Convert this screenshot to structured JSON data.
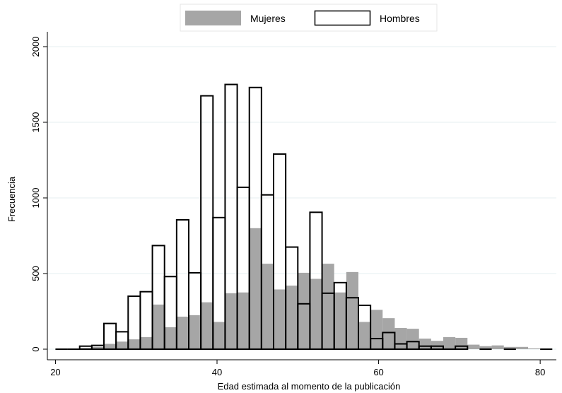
{
  "chart_data": {
    "type": "bar",
    "xlabel": "Edad estimada al momento de la publicación",
    "ylabel": "Frecuencia",
    "xlim": [
      19,
      82
    ],
    "ylim": [
      0,
      2000
    ],
    "xticks": [
      20,
      40,
      60,
      80
    ],
    "yticks": [
      0,
      500,
      1000,
      1500,
      2000
    ],
    "bin_width": 1.5,
    "legend_position": "top",
    "grid": true,
    "series": [
      {
        "name": "Mujeres",
        "style": "filled",
        "color": "#a6a6a6",
        "bins": [
          {
            "x0": 21.5,
            "value": 3
          },
          {
            "x0": 23.0,
            "value": 8
          },
          {
            "x0": 24.5,
            "value": 15
          },
          {
            "x0": 26.0,
            "value": 35
          },
          {
            "x0": 27.5,
            "value": 50
          },
          {
            "x0": 29.0,
            "value": 65
          },
          {
            "x0": 30.5,
            "value": 80
          },
          {
            "x0": 32.0,
            "value": 295
          },
          {
            "x0": 33.5,
            "value": 145
          },
          {
            "x0": 35.0,
            "value": 215
          },
          {
            "x0": 36.5,
            "value": 225
          },
          {
            "x0": 38.0,
            "value": 310
          },
          {
            "x0": 39.5,
            "value": 180
          },
          {
            "x0": 41.0,
            "value": 370
          },
          {
            "x0": 42.5,
            "value": 375
          },
          {
            "x0": 44.0,
            "value": 800
          },
          {
            "x0": 45.5,
            "value": 565
          },
          {
            "x0": 47.0,
            "value": 395
          },
          {
            "x0": 48.5,
            "value": 420
          },
          {
            "x0": 50.0,
            "value": 505
          },
          {
            "x0": 51.5,
            "value": 465
          },
          {
            "x0": 53.0,
            "value": 565
          },
          {
            "x0": 54.5,
            "value": 375
          },
          {
            "x0": 56.0,
            "value": 510
          },
          {
            "x0": 57.5,
            "value": 180
          },
          {
            "x0": 59.0,
            "value": 260
          },
          {
            "x0": 60.5,
            "value": 205
          },
          {
            "x0": 62.0,
            "value": 140
          },
          {
            "x0": 63.5,
            "value": 135
          },
          {
            "x0": 65.0,
            "value": 70
          },
          {
            "x0": 66.5,
            "value": 55
          },
          {
            "x0": 68.0,
            "value": 80
          },
          {
            "x0": 69.5,
            "value": 75
          },
          {
            "x0": 71.0,
            "value": 30
          },
          {
            "x0": 72.5,
            "value": 20
          },
          {
            "x0": 74.0,
            "value": 25
          },
          {
            "x0": 75.5,
            "value": 15
          },
          {
            "x0": 77.0,
            "value": 15
          },
          {
            "x0": 78.5,
            "value": 5
          }
        ]
      },
      {
        "name": "Hombres",
        "style": "outline",
        "color": "#000000",
        "bins": [
          {
            "x0": 20.0,
            "value": 0
          },
          {
            "x0": 21.5,
            "value": 0
          },
          {
            "x0": 23.0,
            "value": 20
          },
          {
            "x0": 24.5,
            "value": 25
          },
          {
            "x0": 26.0,
            "value": 170
          },
          {
            "x0": 27.5,
            "value": 115
          },
          {
            "x0": 29.0,
            "value": 350
          },
          {
            "x0": 30.5,
            "value": 380
          },
          {
            "x0": 32.0,
            "value": 685
          },
          {
            "x0": 33.5,
            "value": 480
          },
          {
            "x0": 35.0,
            "value": 855
          },
          {
            "x0": 36.5,
            "value": 505
          },
          {
            "x0": 38.0,
            "value": 1675
          },
          {
            "x0": 39.5,
            "value": 870
          },
          {
            "x0": 41.0,
            "value": 1750
          },
          {
            "x0": 42.5,
            "value": 1070
          },
          {
            "x0": 44.0,
            "value": 1730
          },
          {
            "x0": 45.5,
            "value": 1020
          },
          {
            "x0": 47.0,
            "value": 1290
          },
          {
            "x0": 48.5,
            "value": 675
          },
          {
            "x0": 50.0,
            "value": 300
          },
          {
            "x0": 51.5,
            "value": 905
          },
          {
            "x0": 53.0,
            "value": 370
          },
          {
            "x0": 54.5,
            "value": 440
          },
          {
            "x0": 56.0,
            "value": 340
          },
          {
            "x0": 57.5,
            "value": 290
          },
          {
            "x0": 59.0,
            "value": 70
          },
          {
            "x0": 60.5,
            "value": 110
          },
          {
            "x0": 62.0,
            "value": 35
          },
          {
            "x0": 63.5,
            "value": 50
          },
          {
            "x0": 65.0,
            "value": 20
          },
          {
            "x0": 66.5,
            "value": 20
          },
          {
            "x0": 68.0,
            "value": 0
          },
          {
            "x0": 69.5,
            "value": 20
          },
          {
            "x0": 72.5,
            "value": 0
          },
          {
            "x0": 75.5,
            "value": 0
          },
          {
            "x0": 80.0,
            "value": 0
          }
        ]
      }
    ]
  }
}
